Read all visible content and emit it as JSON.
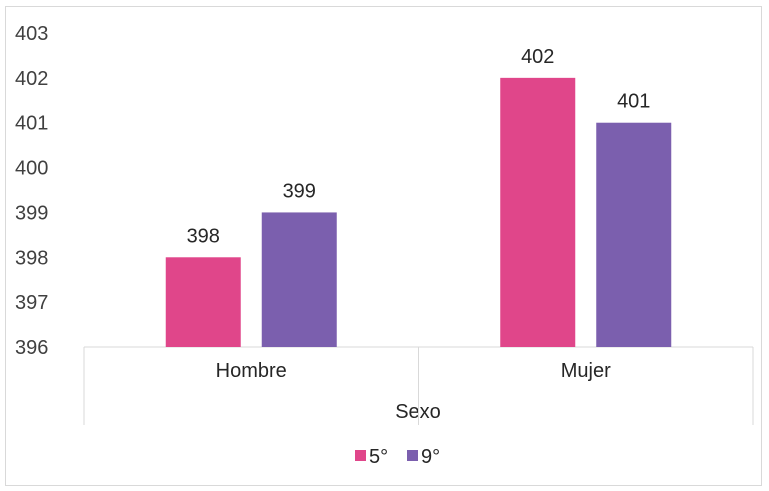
{
  "chart_data": {
    "type": "bar",
    "title": "",
    "xlabel": "Sexo",
    "ylabel": "",
    "categories": [
      "Hombre",
      "Mujer"
    ],
    "ylim": [
      396,
      403
    ],
    "yticks": [
      396,
      397,
      398,
      399,
      400,
      401,
      402,
      403
    ],
    "gridlines": false,
    "legend_position": "bottom",
    "series": [
      {
        "name": "5°",
        "values": [
          398,
          402
        ],
        "color": "#e0468a"
      },
      {
        "name": "9°",
        "values": [
          399,
          401
        ],
        "color": "#7b5fae"
      }
    ]
  }
}
